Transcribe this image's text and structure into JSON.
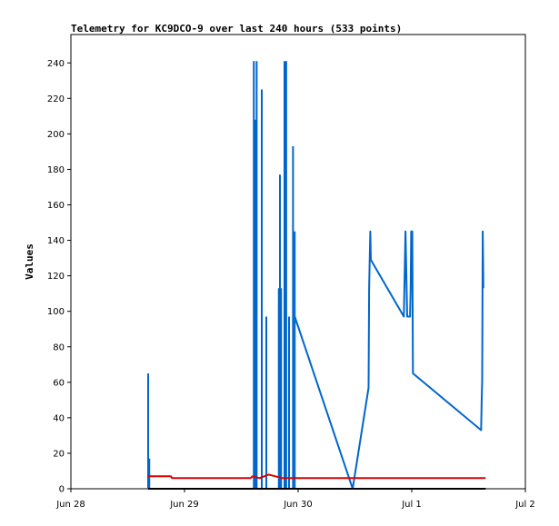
{
  "chart_data": {
    "type": "line",
    "title": "Telemetry for KC9DCO-9 over last 240 hours (533 points)",
    "ylabel": "Values",
    "xlabel": "",
    "x_ticks": [
      "Jun 28",
      "Jun 29",
      "Jun 30",
      "Jul 1",
      "Jul 2"
    ],
    "x_range_days": [
      0,
      4
    ],
    "ylim": [
      0,
      256
    ],
    "y_ticks": [
      0,
      20,
      40,
      60,
      80,
      100,
      120,
      140,
      160,
      180,
      200,
      220,
      240
    ],
    "grid": false,
    "legend": "none",
    "series": [
      {
        "color": "#0066cc",
        "kind": "spikes",
        "points": [
          [
            0.68,
            65
          ],
          [
            0.69,
            17
          ],
          [
            1.61,
            241
          ],
          [
            1.62,
            208
          ],
          [
            1.635,
            241
          ],
          [
            1.68,
            225
          ],
          [
            1.72,
            97
          ],
          [
            1.83,
            113
          ],
          [
            1.84,
            177
          ],
          [
            1.85,
            113
          ],
          [
            1.88,
            241
          ],
          [
            1.895,
            241
          ],
          [
            1.92,
            97
          ],
          [
            1.955,
            193
          ],
          [
            1.97,
            145
          ]
        ]
      },
      {
        "color": "#0066cc",
        "kind": "line",
        "points": [
          [
            1.97,
            97
          ],
          [
            2.48,
            0
          ],
          [
            2.62,
            57
          ],
          [
            2.625,
            113
          ],
          [
            2.635,
            145
          ],
          [
            2.64,
            129
          ],
          [
            2.93,
            97
          ],
          [
            2.945,
            145
          ],
          [
            2.96,
            97
          ],
          [
            2.985,
            97
          ],
          [
            2.99,
            113
          ],
          [
            2.995,
            145
          ],
          [
            3.005,
            145
          ],
          [
            3.01,
            65
          ],
          [
            3.61,
            33
          ],
          [
            3.615,
            49
          ],
          [
            3.62,
            61
          ],
          [
            3.625,
            145
          ],
          [
            3.63,
            113
          ]
        ]
      },
      {
        "color": "#dd0000",
        "kind": "line",
        "points": [
          [
            0.68,
            7
          ],
          [
            0.88,
            7
          ],
          [
            0.89,
            6
          ],
          [
            1.58,
            6
          ],
          [
            1.6,
            7
          ],
          [
            1.66,
            6
          ],
          [
            1.74,
            8
          ],
          [
            1.8,
            7
          ],
          [
            1.86,
            6
          ],
          [
            3.65,
            6
          ]
        ]
      },
      {
        "color": "#000000",
        "kind": "line",
        "points": [
          [
            0.68,
            0
          ],
          [
            3.65,
            0
          ]
        ]
      }
    ]
  }
}
